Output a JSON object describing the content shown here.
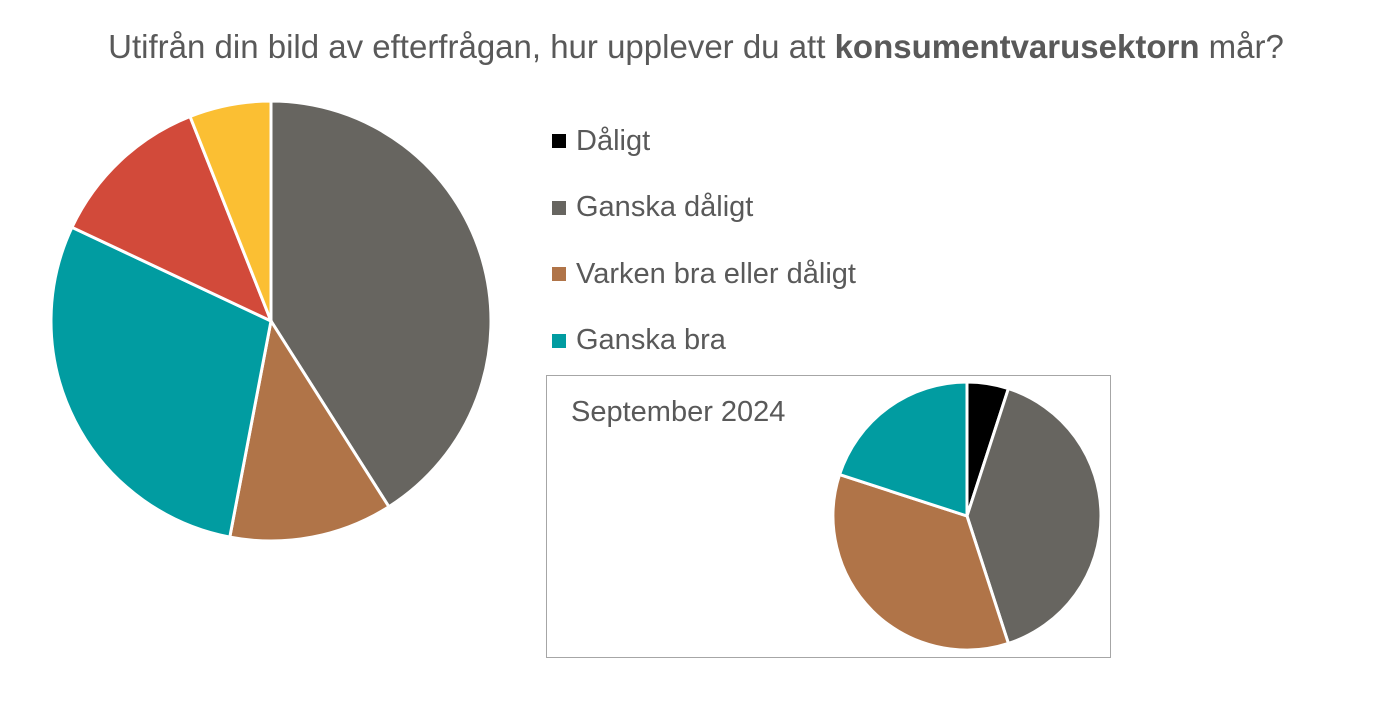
{
  "chart_data": [
    {
      "type": "pie",
      "title_prefix": "Utifrån din bild av efterfrågan, hur upplever du att ",
      "title_bold": "konsumentvarusektorn",
      "title_suffix": " mår?",
      "legend": [
        {
          "name": "Dåligt",
          "color": "#000000"
        },
        {
          "name": "Ganska dåligt",
          "color": "#676560"
        },
        {
          "name": "Varken bra eller dåligt",
          "color": "#b07448"
        },
        {
          "name": "Ganska bra",
          "color": "#019ca1"
        }
      ],
      "legend_position": "right",
      "slices": [
        {
          "name": "Ganska dåligt",
          "value": 41,
          "color": "#676560"
        },
        {
          "name": "Varken bra eller dåligt",
          "value": 12,
          "color": "#b07448"
        },
        {
          "name": "Ganska bra",
          "value": 29,
          "color": "#019ca1"
        },
        {
          "name": "",
          "value": 12,
          "color": "#d24a3a"
        },
        {
          "name": "",
          "value": 6,
          "color": "#fbbf33"
        }
      ],
      "unit": "%"
    },
    {
      "type": "pie",
      "title": "September 2024",
      "slices": [
        {
          "name": "Dåligt",
          "value": 5,
          "color": "#000000"
        },
        {
          "name": "Ganska dåligt",
          "value": 40,
          "color": "#676560"
        },
        {
          "name": "Varken bra eller dåligt",
          "value": 35,
          "color": "#b07448"
        },
        {
          "name": "Ganska bra",
          "value": 20,
          "color": "#019ca1"
        }
      ],
      "unit": "%"
    }
  ]
}
